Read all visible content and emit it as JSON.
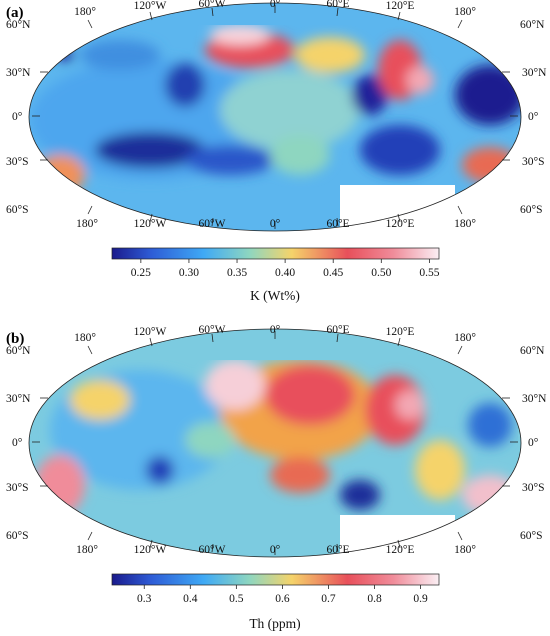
{
  "panels": [
    {
      "id": "a",
      "label": "(a)",
      "quantity": "K (Wt%)",
      "colorbar_ticks": [
        "0.25",
        "0.30",
        "0.35",
        "0.40",
        "0.45",
        "0.50",
        "0.55"
      ],
      "colorbar_range": [
        0.22,
        0.56
      ],
      "tick_values": [
        0.25,
        0.3,
        0.35,
        0.4,
        0.45,
        0.5,
        0.55
      ]
    },
    {
      "id": "b",
      "label": "(b)",
      "quantity": "Th (ppm)",
      "colorbar_ticks": [
        "0.3",
        "0.4",
        "0.5",
        "0.6",
        "0.7",
        "0.8",
        "0.9"
      ],
      "colorbar_range": [
        0.23,
        0.94
      ],
      "tick_values": [
        0.3,
        0.4,
        0.5,
        0.6,
        0.7,
        0.8,
        0.9
      ]
    }
  ],
  "map": {
    "projection": "Hammer-style equal-area (partial)",
    "longitude_labels": [
      "180°",
      "120°W",
      "60°W",
      "0°",
      "60°E",
      "120°E",
      "180°"
    ],
    "latitude_labels_left": [
      "60°N",
      "30°N",
      "0°",
      "30°S",
      "60°S"
    ],
    "latitude_labels_right": [
      "60°N",
      "30°N",
      "0°",
      "30°S",
      "60°S"
    ]
  },
  "colormap": "jet-to-pink (dark blue → cyan → green → yellow → red → white)",
  "colors": {
    "low": "#1a1a8c",
    "mid_low": "#3fa9f5",
    "mid": "#8ed6c0",
    "mid_high": "#f5d36a",
    "high": "#e8505b",
    "max": "#fbeff4"
  }
}
